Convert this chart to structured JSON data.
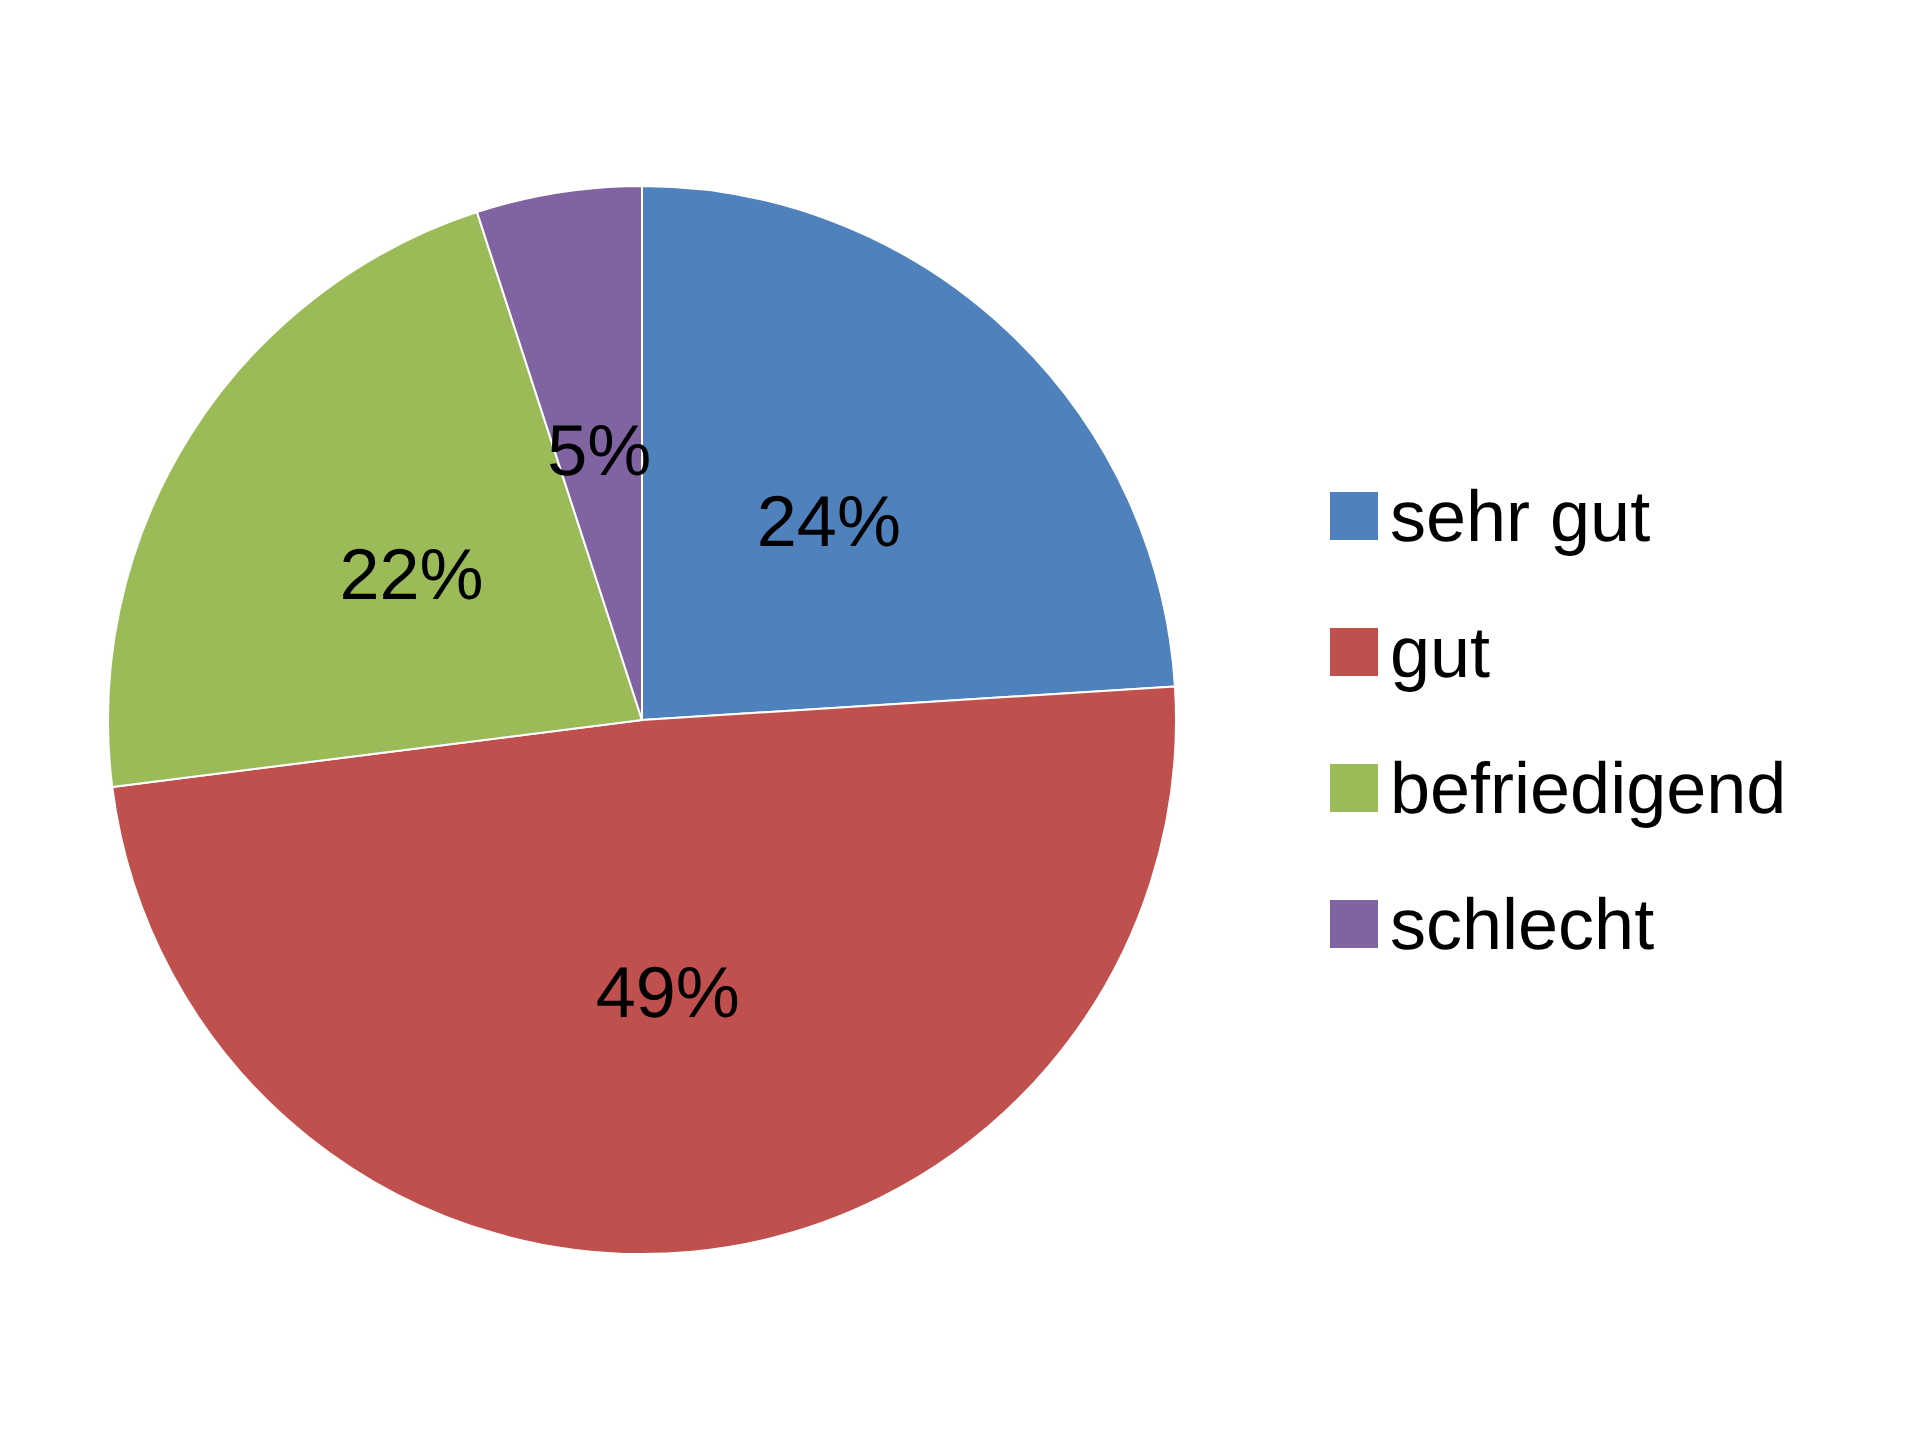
{
  "chart_data": {
    "type": "pie",
    "categories": [
      "sehr gut",
      "gut",
      "befriedigend",
      "schlecht"
    ],
    "values": [
      24,
      49,
      22,
      5
    ],
    "colors": [
      "#4f81bd",
      "#c0504d",
      "#9bbb59",
      "#8064a2"
    ],
    "value_labels": [
      "24%",
      "49%",
      "22%",
      "5%"
    ],
    "legend": "right"
  }
}
